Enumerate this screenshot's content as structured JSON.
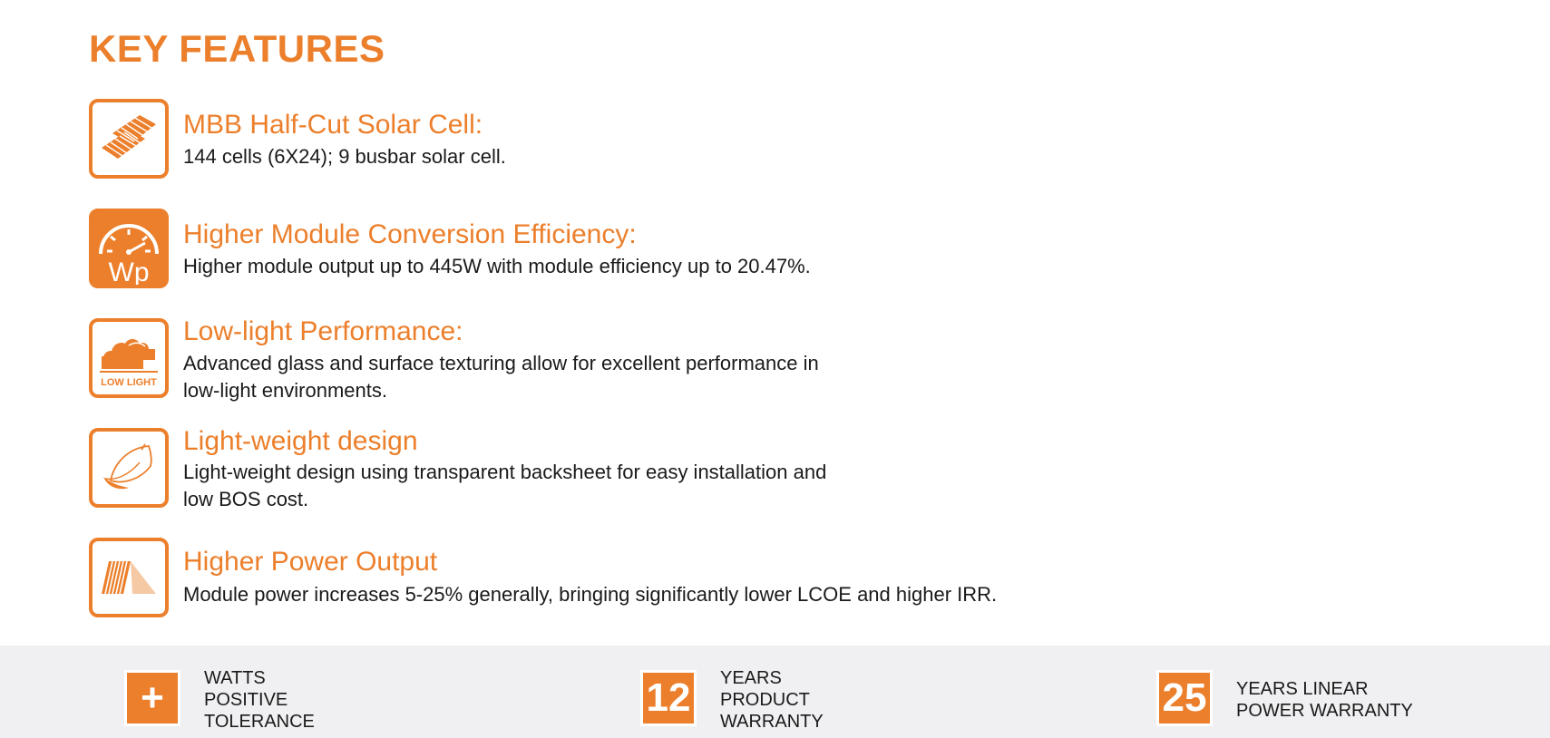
{
  "page": {
    "title": "KEY FEATURES"
  },
  "features": [
    {
      "icon": "solar-cell-icon",
      "heading": "MBB Half-Cut Solar Cell:",
      "lines": [
        "144 cells (6X24); 9 busbar solar cell."
      ]
    },
    {
      "icon": "efficiency-gauge-icon",
      "icon_text": "Wp",
      "heading": "Higher Module Conversion Efficiency:",
      "lines": [
        "Higher module output up to 445W with module efficiency up to 20.47%."
      ]
    },
    {
      "icon": "low-light-clouds-icon",
      "icon_text": "LOW LIGHT",
      "heading": "Low-light Performance:",
      "lines": [
        "Advanced glass and surface texturing allow for excellent performance in",
        "low-light environments."
      ]
    },
    {
      "icon": "feather-icon",
      "heading": "Light-weight design",
      "lines": [
        "Light-weight design using transparent backsheet for easy installation and",
        "low BOS cost."
      ]
    },
    {
      "icon": "bifacial-panel-icon",
      "heading": "Higher Power Output",
      "lines": [
        "Module power increases 5-25% generally, bringing significantly lower LCOE and higher IRR."
      ]
    }
  ],
  "footer": [
    {
      "badge": "+",
      "lines": [
        "WATTS",
        "POSITIVE",
        "TOLERANCE"
      ]
    },
    {
      "badge": "12",
      "lines": [
        "YEARS",
        "PRODUCT",
        "WARRANTY"
      ]
    },
    {
      "badge": "25",
      "lines": [
        "YEARS LINEAR",
        "POWER WARRANTY"
      ]
    }
  ],
  "colors": {
    "accent": "#ec7f2b",
    "footer_bg": "#f0f0f2",
    "text": "#1a1a1a"
  }
}
